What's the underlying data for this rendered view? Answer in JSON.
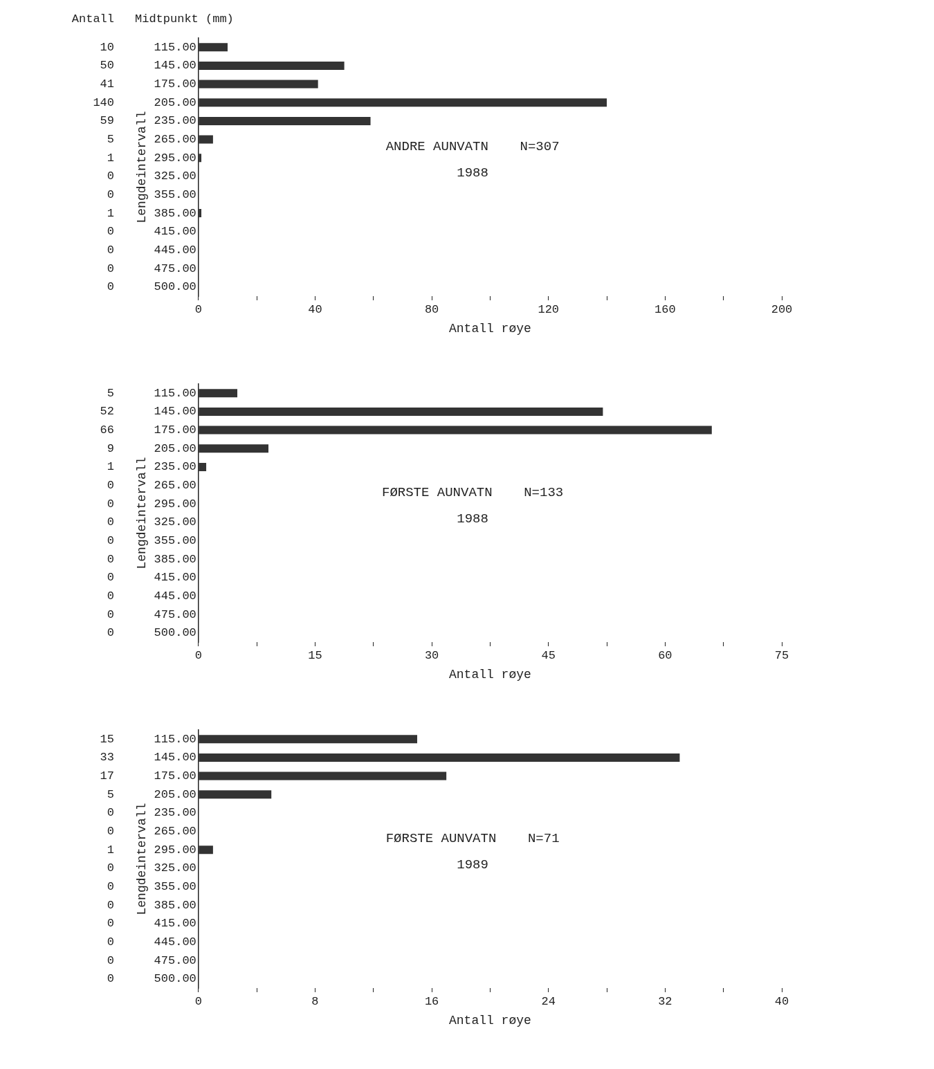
{
  "chart_data": [
    {
      "type": "bar",
      "orientation": "horizontal",
      "title": "ANDRE AUNVATN    N=307",
      "subtitle": "1988",
      "ylabel": "Lengdeintervall",
      "xlabel": "Antall røye",
      "annotations": [
        "Antall",
        "Midtpunkt (mm)"
      ],
      "categories": [
        "115.00",
        "145.00",
        "175.00",
        "205.00",
        "235.00",
        "265.00",
        "295.00",
        "325.00",
        "355.00",
        "385.00",
        "415.00",
        "445.00",
        "475.00",
        "500.00"
      ],
      "values": [
        10,
        50,
        41,
        140,
        59,
        5,
        1,
        0,
        0,
        1,
        0,
        0,
        0,
        0
      ],
      "color": "#333333",
      "data_labels": true,
      "legend": false,
      "grid": false,
      "xlim": [
        0,
        200
      ],
      "xticks": [
        0,
        {
          "value": 20,
          "label": null
        },
        40,
        {
          "value": 60,
          "label": null
        },
        80,
        {
          "value": 100,
          "label": null
        },
        120,
        {
          "value": 140,
          "label": null
        },
        160,
        {
          "value": 180,
          "label": null
        },
        200
      ]
    },
    {
      "type": "bar",
      "orientation": "horizontal",
      "title": "FØRSTE AUNVATN    N=133",
      "subtitle": "1988",
      "ylabel": "Lengdeintervall",
      "xlabel": "Antall røye",
      "categories": [
        "115.00",
        "145.00",
        "175.00",
        "205.00",
        "235.00",
        "265.00",
        "295.00",
        "325.00",
        "355.00",
        "385.00",
        "415.00",
        "445.00",
        "475.00",
        "500.00"
      ],
      "values": [
        5,
        52,
        66,
        9,
        1,
        0,
        0,
        0,
        0,
        0,
        0,
        0,
        0,
        0
      ],
      "color": "#333333",
      "data_labels": true,
      "legend": false,
      "grid": false,
      "xlim": [
        0,
        75
      ],
      "xticks": [
        0,
        {
          "value": 7.5,
          "label": null
        },
        15,
        {
          "value": 22.5,
          "label": null
        },
        30,
        {
          "value": 37.5,
          "label": null
        },
        45,
        {
          "value": 52.5,
          "label": null
        },
        60,
        {
          "value": 67.5,
          "label": null
        },
        75
      ]
    },
    {
      "type": "bar",
      "orientation": "horizontal",
      "title": "FØRSTE AUNVATN    N=71",
      "subtitle": "1989",
      "ylabel": "Lengdeintervall",
      "xlabel": "Antall røye",
      "categories": [
        "115.00",
        "145.00",
        "175.00",
        "205.00",
        "235.00",
        "265.00",
        "295.00",
        "325.00",
        "355.00",
        "385.00",
        "415.00",
        "445.00",
        "475.00",
        "500.00"
      ],
      "values": [
        15,
        33,
        17,
        5,
        0,
        0,
        1,
        0,
        0,
        0,
        0,
        0,
        0,
        0
      ],
      "color": "#333333",
      "data_labels": true,
      "legend": false,
      "grid": false,
      "xlim": [
        0,
        40
      ],
      "xticks": [
        0,
        {
          "value": 4,
          "label": null
        },
        8,
        {
          "value": 12,
          "label": null
        },
        16,
        {
          "value": 20,
          "label": null
        },
        24,
        {
          "value": 28,
          "label": null
        },
        32,
        {
          "value": 36,
          "label": null
        },
        40
      ]
    }
  ]
}
